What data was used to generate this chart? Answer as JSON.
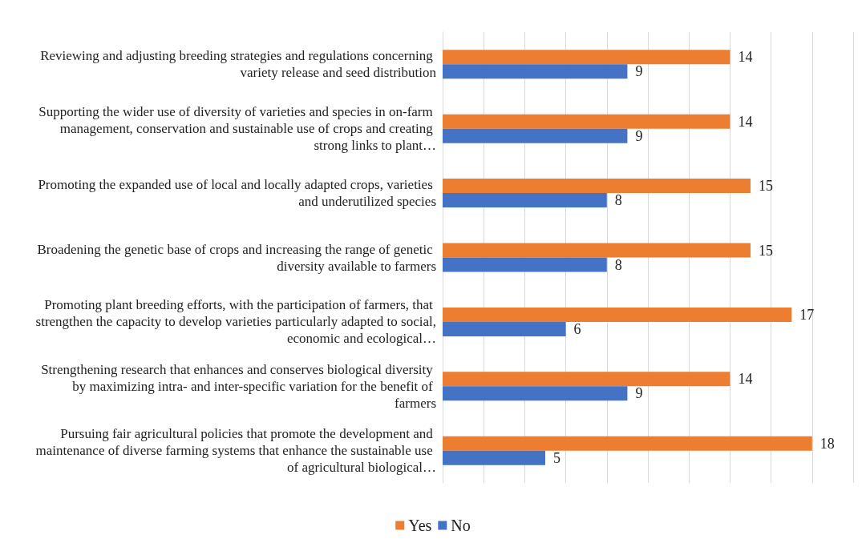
{
  "chart_data": {
    "type": "bar",
    "orientation": "horizontal",
    "categories": [
      "Reviewing and adjusting breeding strategies and regulations concerning variety release and seed distribution",
      "Supporting the wider use of diversity of varieties and species in on-farm management, conservation and sustainable use of crops and creating strong links to plant…",
      "Promoting the expanded use of local and locally adapted crops, varieties and underutilized species",
      "Broadening the genetic base of crops and increasing the range of genetic diversity available to farmers",
      "Promoting plant breeding efforts, with the participation of farmers, that strengthen the capacity to develop varieties particularly adapted to social, economic and ecological…",
      "Strengthening research that enhances and conserves biological diversity by maximizing intra- and inter-specific variation for the benefit of farmers",
      "Pursuing fair agricultural policies that promote the development and maintenance of diverse farming systems that enhance the sustainable use of agricultural biological…"
    ],
    "series": [
      {
        "name": "Yes",
        "color": "#ed7d31",
        "values": [
          14,
          14,
          15,
          15,
          17,
          14,
          18
        ]
      },
      {
        "name": "No",
        "color": "#4472c4",
        "values": [
          9,
          9,
          8,
          8,
          6,
          9,
          5
        ]
      }
    ],
    "xlim": [
      0,
      20
    ],
    "xticks": [
      {
        "value": 0,
        "label": null
      },
      {
        "value": 2,
        "label": null
      },
      {
        "value": 4,
        "label": null
      },
      {
        "value": 6,
        "label": null
      },
      {
        "value": 8,
        "label": null
      },
      {
        "value": 10,
        "label": null
      },
      {
        "value": 12,
        "label": null
      },
      {
        "value": 14,
        "label": null
      },
      {
        "value": 16,
        "label": null
      },
      {
        "value": 18,
        "label": null
      },
      {
        "value": 20,
        "label": null
      }
    ],
    "tick_labels": "y",
    "grid": "x",
    "legend": "bottom",
    "data_labels": true
  }
}
